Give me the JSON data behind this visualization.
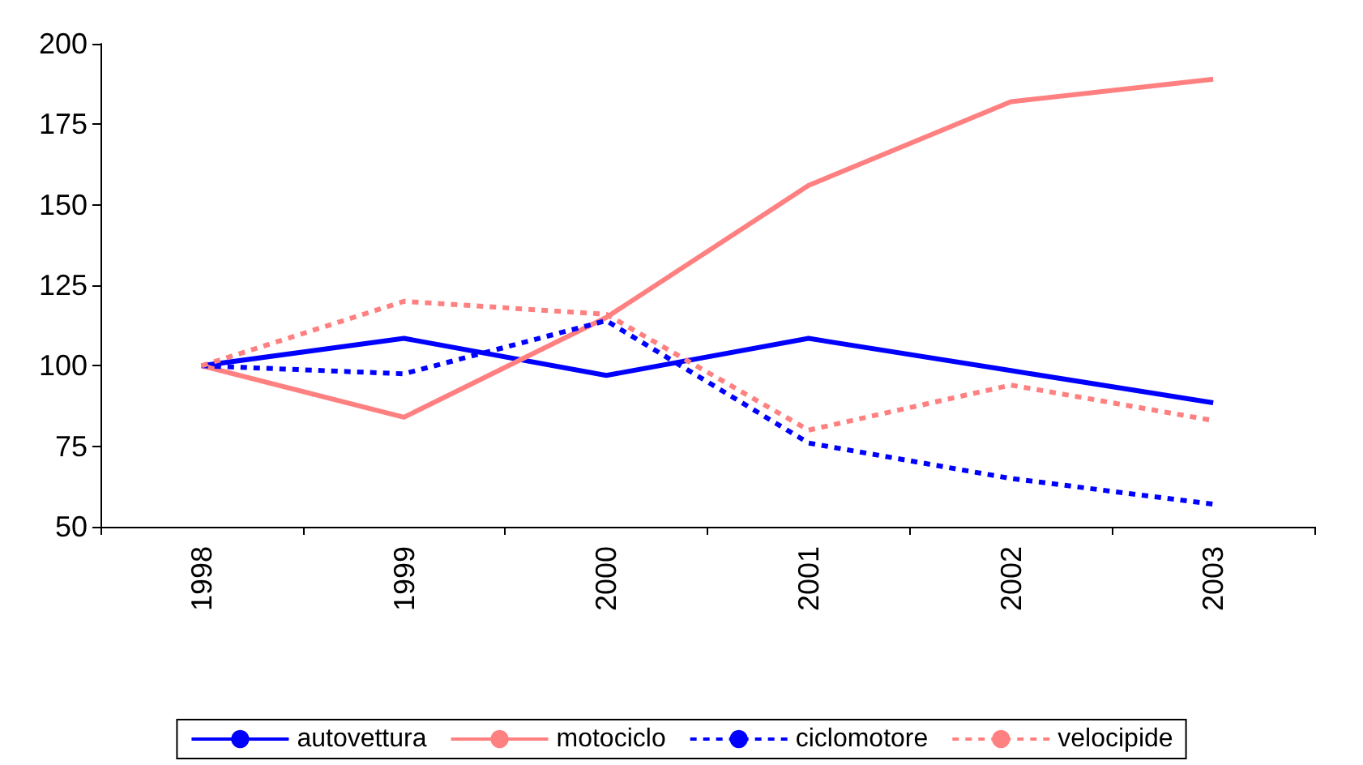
{
  "chart_data": {
    "type": "line",
    "categories": [
      "1998",
      "1999",
      "2000",
      "2001",
      "2002",
      "2003"
    ],
    "series": [
      {
        "name": "autovettura",
        "color": "#0000ff",
        "line_style": "solid",
        "values": [
          100,
          108.5,
          97,
          108.5,
          98.5,
          88.5
        ]
      },
      {
        "name": "motociclo",
        "color": "#ff8080",
        "line_style": "solid",
        "values": [
          100,
          84,
          115,
          156,
          182,
          189
        ]
      },
      {
        "name": "ciclomotore",
        "color": "#0000ff",
        "line_style": "dashed",
        "values": [
          100,
          97.5,
          114,
          76,
          65,
          57
        ]
      },
      {
        "name": "velocipide",
        "color": "#ff8080",
        "line_style": "dashed",
        "values": [
          100,
          120,
          116,
          80,
          94,
          83
        ]
      }
    ],
    "ylim": [
      50,
      200
    ],
    "yticks": [
      50,
      75,
      100,
      125,
      150,
      175,
      200
    ],
    "grid": false,
    "legend": "bottom",
    "marker": "none"
  }
}
